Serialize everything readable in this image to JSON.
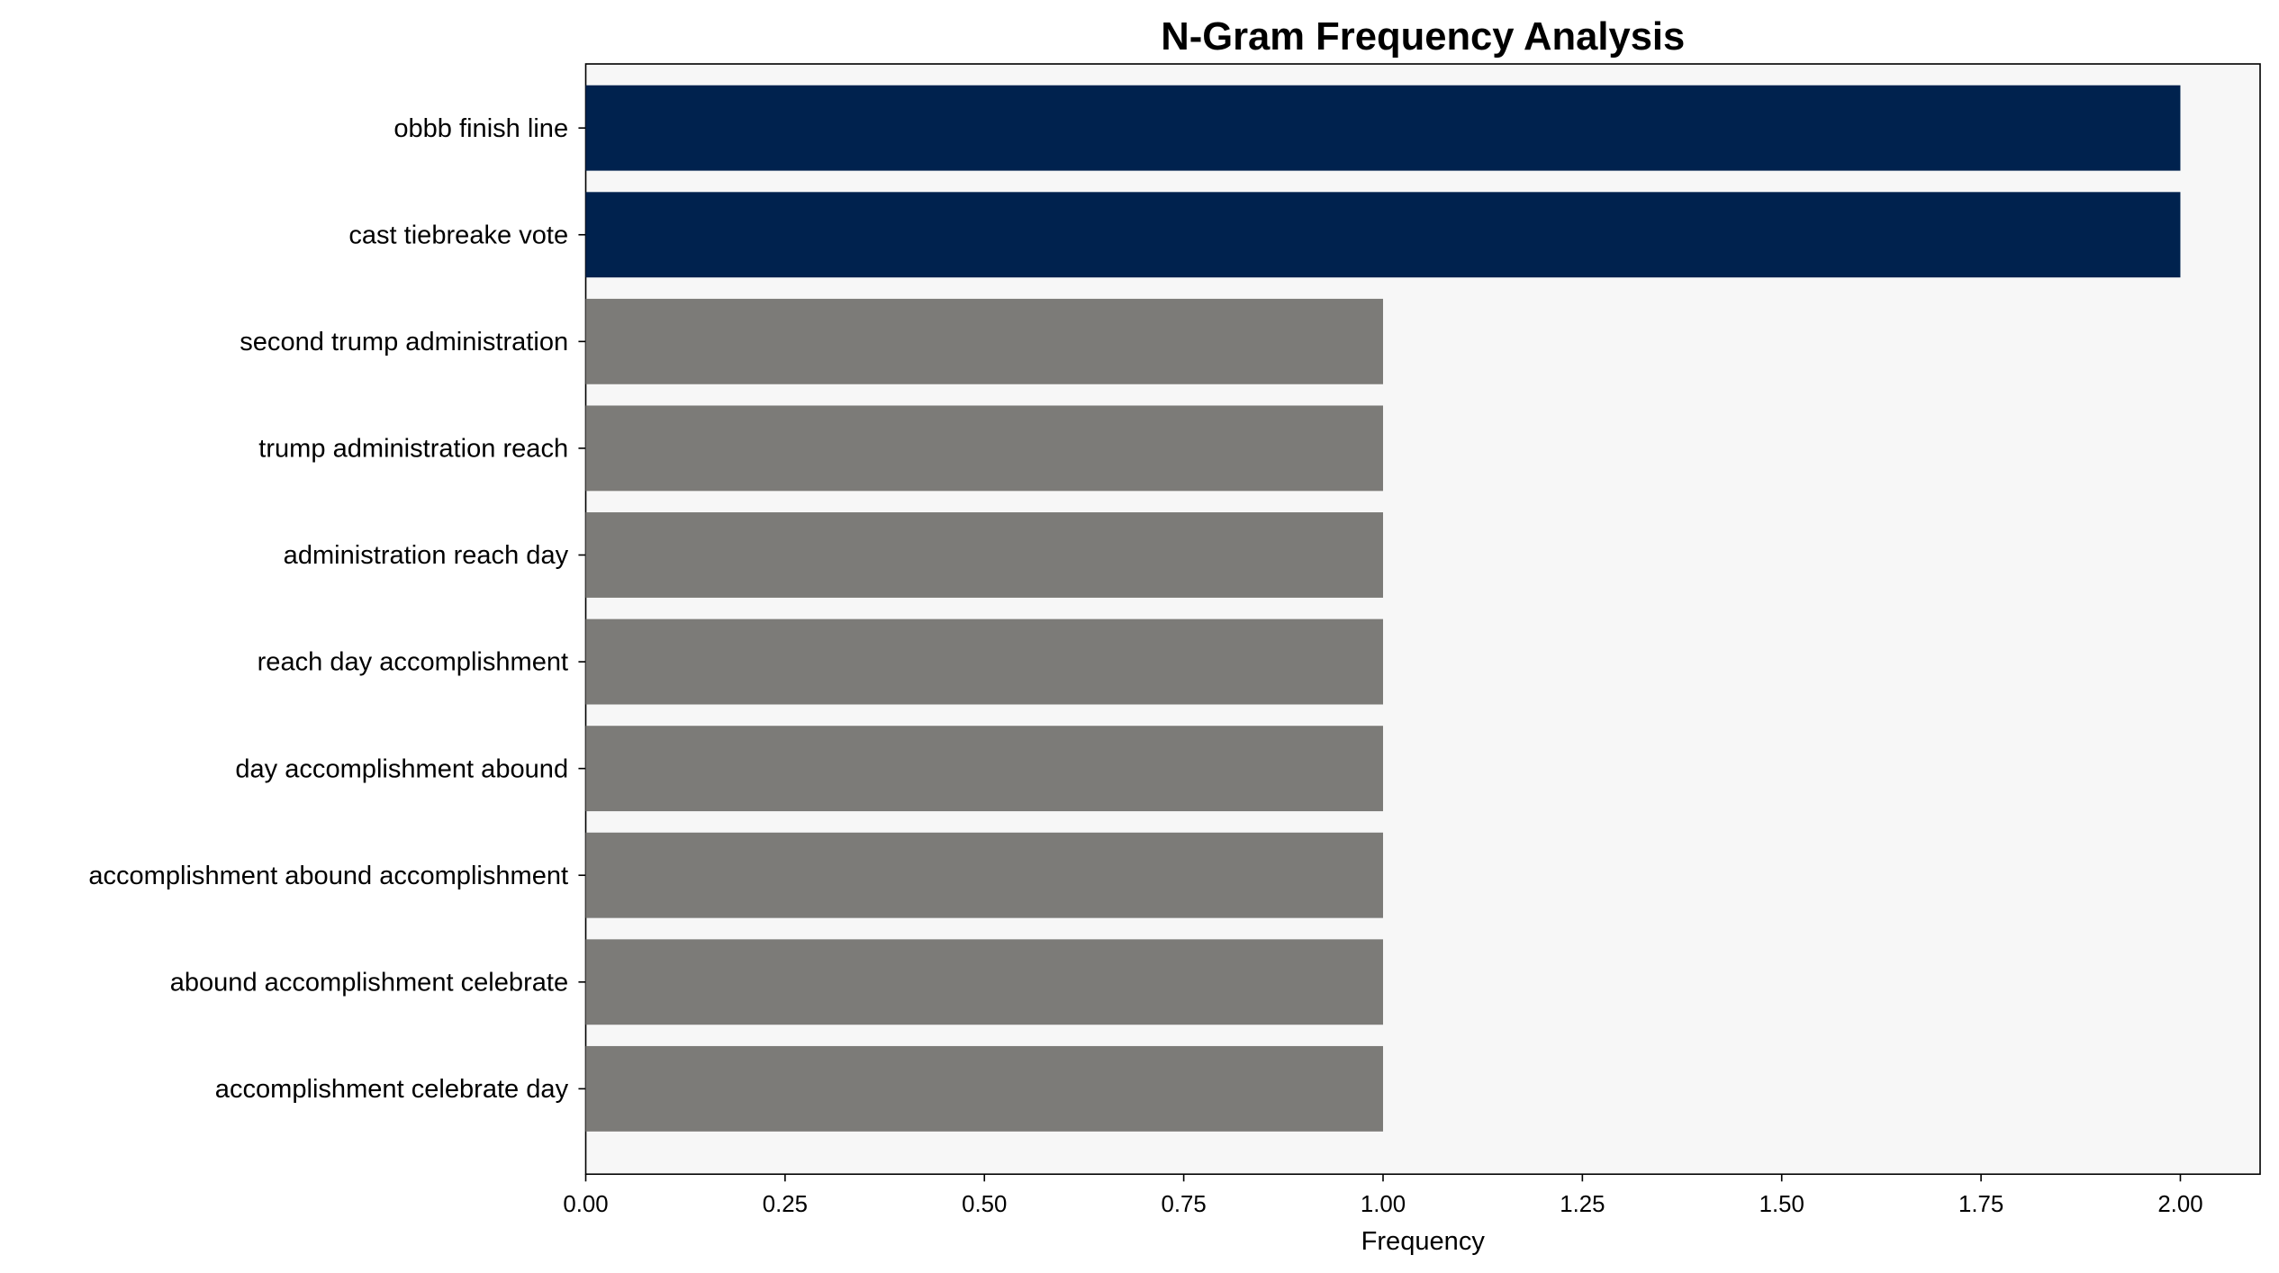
{
  "chart_data": {
    "type": "bar",
    "orientation": "horizontal",
    "title": "N-Gram Frequency Analysis",
    "xlabel": "Frequency",
    "ylabel": "",
    "xlim": [
      0,
      2.1
    ],
    "grid": false,
    "categories": [
      "obbb finish line",
      "cast tiebreake vote",
      "second trump administration",
      "trump administration reach",
      "administration reach day",
      "reach day accomplishment",
      "day accomplishment abound",
      "accomplishment abound accomplishment",
      "abound accomplishment celebrate",
      "accomplishment celebrate day"
    ],
    "values": [
      2,
      2,
      1,
      1,
      1,
      1,
      1,
      1,
      1,
      1
    ],
    "xticks": [
      "0.00",
      "0.25",
      "0.50",
      "0.75",
      "1.00",
      "1.25",
      "1.50",
      "1.75",
      "2.00"
    ],
    "colors": {
      "top": "#00224e",
      "other": "#7c7b78",
      "plot_bg": "#f7f7f7"
    }
  }
}
